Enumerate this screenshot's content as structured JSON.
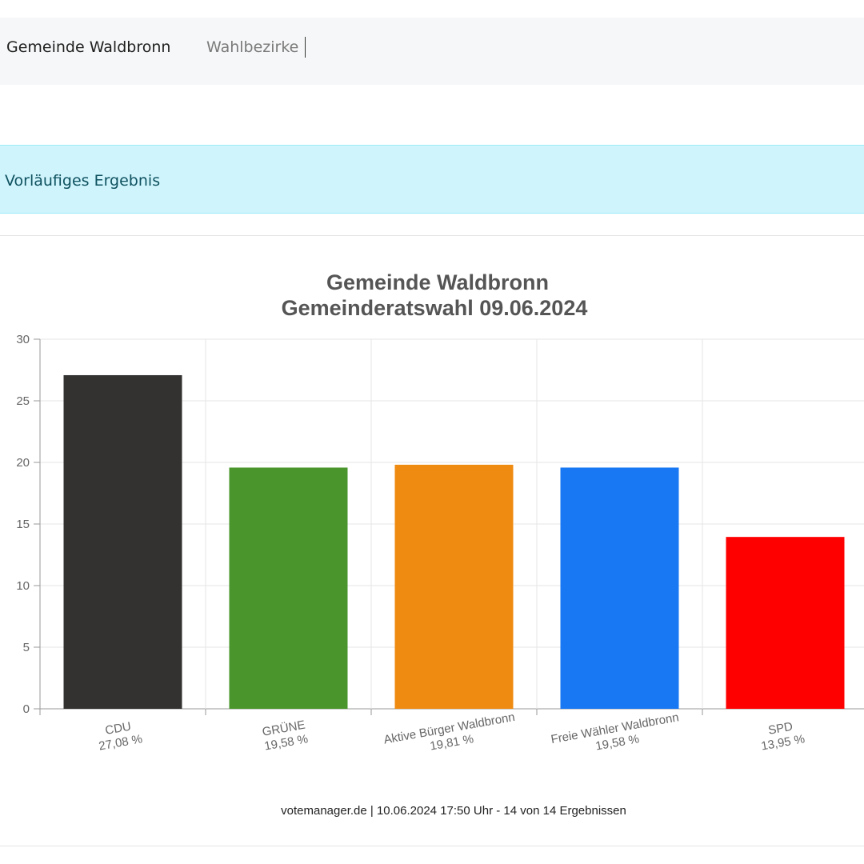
{
  "breadcrumb": {
    "items": [
      "Gemeinde Waldbronn",
      "Wahlbezirke"
    ]
  },
  "alert": {
    "text": "Vorläufiges Ergebnis"
  },
  "chart_data": {
    "type": "bar",
    "title": "Gemeinde Waldbronn",
    "subtitle": "Gemeinderatswahl 09.06.2024",
    "xlabel": "",
    "ylabel": "",
    "ylim": [
      0,
      30
    ],
    "yticks": [
      0,
      5,
      10,
      15,
      20,
      25,
      30
    ],
    "grid": true,
    "legend": "none",
    "categories": [
      "CDU",
      "GRÜNE",
      "Aktive Bürger Waldbronn",
      "Freie Wähler Waldbronn",
      "SPD"
    ],
    "values": [
      27.08,
      19.58,
      19.81,
      19.58,
      13.95
    ],
    "value_labels": [
      "27,08 %",
      "19,58 %",
      "19,81 %",
      "19,58 %",
      "13,95 %"
    ],
    "colors": [
      "#333230",
      "#4a962c",
      "#ef8b10",
      "#1877f2",
      "#ff0000"
    ],
    "footer": "votemanager.de | 10.06.2024 17:50 Uhr - 14 von 14 Ergebnissen"
  }
}
